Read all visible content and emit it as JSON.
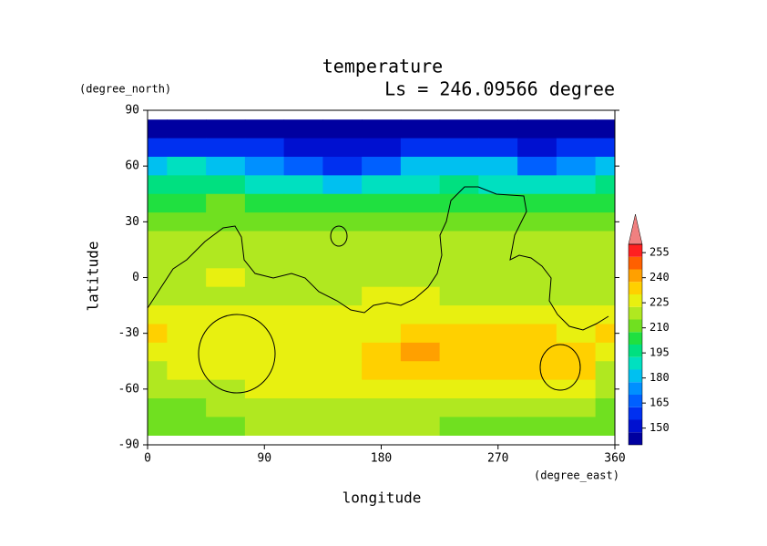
{
  "chart_data": {
    "type": "heatmap",
    "title": "temperature",
    "subtitle": "Ls = 246.09566 degree",
    "y_unit": "(degree_north)",
    "x_unit": "(degree_east)",
    "ylabel": "latitude",
    "xlabel": "longitude",
    "xlim": [
      0,
      360
    ],
    "xticks": [
      0,
      90,
      180,
      270,
      360
    ],
    "ylim": [
      -90,
      90
    ],
    "yticks": [
      90,
      60,
      30,
      0,
      -30,
      -60,
      -90
    ],
    "x": [
      0,
      30,
      60,
      90,
      120,
      150,
      180,
      210,
      240,
      270,
      300,
      330,
      360
    ],
    "y": [
      80,
      70,
      60,
      50,
      40,
      30,
      20,
      10,
      0,
      -10,
      -20,
      -30,
      -40,
      -50,
      -60,
      -70,
      -80
    ],
    "values": [
      [
        146,
        146,
        146,
        146,
        146,
        146,
        146,
        146,
        146,
        146,
        146,
        146,
        146
      ],
      [
        160,
        160,
        158,
        155,
        150,
        148,
        150,
        155,
        160,
        158,
        152,
        155,
        160
      ],
      [
        182,
        185,
        182,
        175,
        165,
        162,
        168,
        178,
        182,
        178,
        168,
        175,
        182
      ],
      [
        195,
        198,
        198,
        192,
        185,
        182,
        188,
        192,
        195,
        192,
        185,
        190,
        195
      ],
      [
        205,
        207,
        208,
        205,
        200,
        200,
        202,
        205,
        205,
        205,
        200,
        203,
        205
      ],
      [
        212,
        213,
        213,
        213,
        210,
        210,
        210,
        212,
        213,
        213,
        210,
        212,
        212
      ],
      [
        216,
        218,
        218,
        215,
        215,
        215,
        216,
        218,
        218,
        218,
        215,
        216,
        216
      ],
      [
        218,
        222,
        222,
        220,
        218,
        218,
        222,
        220,
        218,
        220,
        218,
        218,
        218
      ],
      [
        220,
        222,
        224,
        222,
        222,
        222,
        222,
        222,
        220,
        220,
        220,
        220,
        220
      ],
      [
        220,
        218,
        218,
        220,
        220,
        222,
        224,
        224,
        222,
        220,
        220,
        220,
        220
      ],
      [
        226,
        224,
        224,
        224,
        224,
        226,
        226,
        226,
        228,
        228,
        228,
        226,
        226
      ],
      [
        230,
        226,
        226,
        226,
        226,
        226,
        228,
        230,
        230,
        230,
        230,
        228,
        230
      ],
      [
        226,
        226,
        226,
        226,
        226,
        228,
        232,
        238,
        236,
        232,
        232,
        232,
        226
      ],
      [
        222,
        224,
        226,
        226,
        226,
        226,
        230,
        232,
        232,
        232,
        232,
        230,
        222
      ],
      [
        216,
        218,
        222,
        226,
        226,
        226,
        226,
        228,
        228,
        228,
        228,
        224,
        216
      ],
      [
        210,
        214,
        218,
        222,
        222,
        222,
        222,
        222,
        222,
        222,
        222,
        220,
        210
      ],
      [
        208,
        210,
        212,
        216,
        216,
        218,
        218,
        216,
        214,
        214,
        214,
        212,
        208
      ]
    ],
    "levels": [
      140,
      147.5,
      155,
      162.5,
      170,
      177.5,
      185,
      192.5,
      200,
      207.5,
      215,
      222.5,
      230,
      237.5,
      245,
      252.5,
      260
    ],
    "colors": [
      "#0000a0",
      "#0010d0",
      "#0030f0",
      "#0060ff",
      "#0090ff",
      "#00c0f0",
      "#00e0c0",
      "#00e080",
      "#20e040",
      "#70e020",
      "#b0e820",
      "#e8f010",
      "#ffd000",
      "#ffa000",
      "#ff6000",
      "#ff2020"
    ],
    "extend_color": "#f08080",
    "colorbar_ticks": [
      150,
      165,
      180,
      195,
      210,
      225,
      240,
      255
    ]
  }
}
